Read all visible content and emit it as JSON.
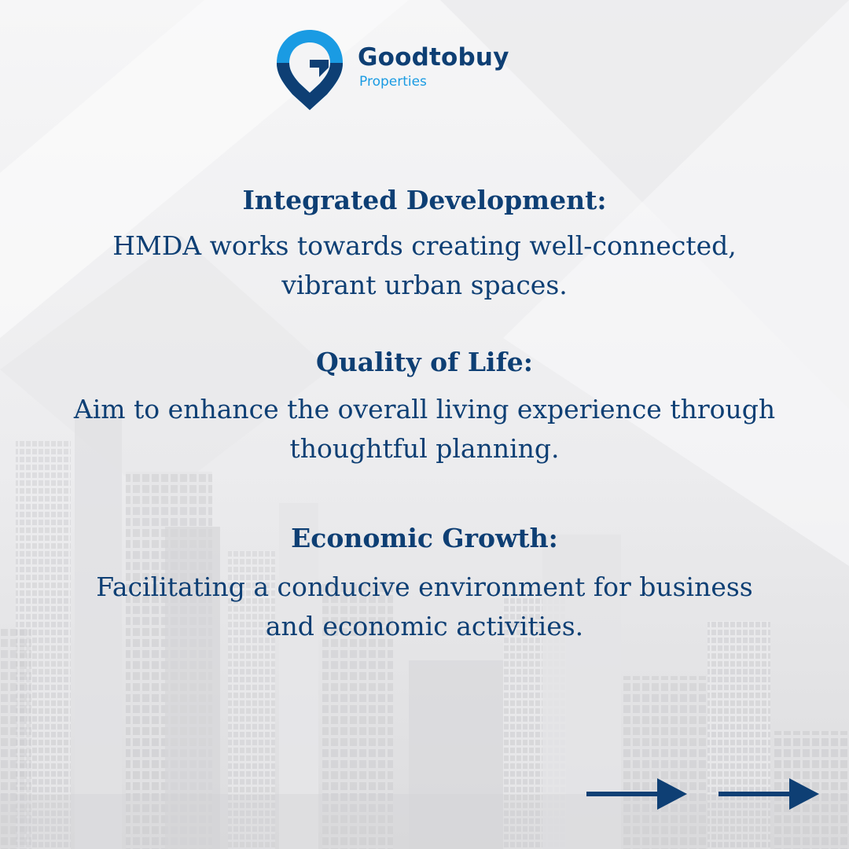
{
  "brand": {
    "name": "Goodtobuy",
    "subtitle": "Properties",
    "logo_icon": "location-pin-g-icon"
  },
  "sections": [
    {
      "heading": "Integrated Development:",
      "lines": [
        "HMDA works towards creating well-connected,",
        "vibrant urban spaces."
      ]
    },
    {
      "heading": "Quality of Life:",
      "lines": [
        "Aim to enhance the overall living experience through",
        "thoughtful planning."
      ]
    },
    {
      "heading": "Economic Growth:",
      "lines": [
        "Facilitating a conducive environment for business",
        "and economic activities."
      ]
    }
  ],
  "navigation": {
    "icons": [
      "arrow-right-icon",
      "arrow-right-icon"
    ]
  },
  "colors": {
    "primary": "#0e3f74",
    "accent": "#1a9be3",
    "background": "#f4f4f5"
  }
}
